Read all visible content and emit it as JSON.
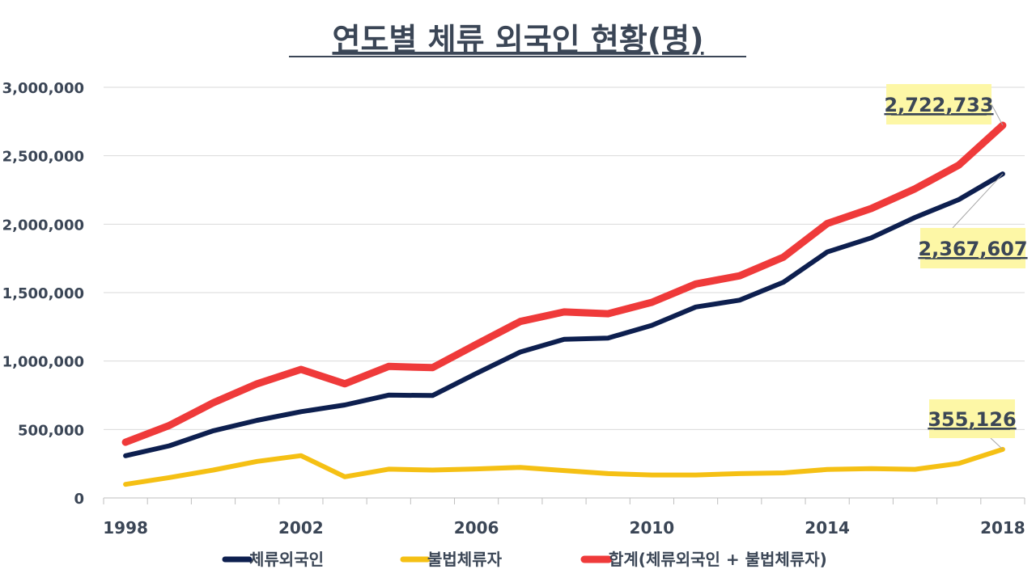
{
  "chart_data": {
    "type": "line",
    "title": "연도별 체류 외국인 현황(명)",
    "x": [
      1998,
      1999,
      2000,
      2001,
      2002,
      2003,
      2004,
      2005,
      2006,
      2007,
      2008,
      2009,
      2010,
      2011,
      2012,
      2013,
      2014,
      2015,
      2016,
      2017,
      2018
    ],
    "x_tick_labels": [
      "1998",
      "2002",
      "2006",
      "2010",
      "2014",
      "2018"
    ],
    "y_tick_labels": [
      "0",
      "500,000",
      "1,000,000",
      "1,500,000",
      "2,000,000",
      "2,500,000",
      "3,000,000"
    ],
    "ylim": [
      0,
      3000000
    ],
    "grid": true,
    "legend_position": "bottom",
    "series": [
      {
        "name": "체류외국인",
        "color": "#0d1f4f",
        "values": [
          308000,
          381000,
          491000,
          567000,
          630000,
          679000,
          751000,
          748000,
          910000,
          1066000,
          1159000,
          1168000,
          1261000,
          1395000,
          1445000,
          1576000,
          1797000,
          1900000,
          2049000,
          2180000,
          2367607
        ]
      },
      {
        "name": "불법체류자",
        "color": "#f5c014",
        "values": [
          99000,
          149000,
          204000,
          267000,
          309000,
          155000,
          210000,
          204000,
          212000,
          223000,
          200000,
          178000,
          168000,
          168000,
          178000,
          183000,
          208000,
          214000,
          209000,
          252000,
          355126
        ]
      },
      {
        "name": "합계(체류외국인 + 불법체류자)",
        "color": "#ef3a3a",
        "values": [
          407000,
          530000,
          695000,
          834000,
          939000,
          834000,
          961000,
          952000,
          1122000,
          1289000,
          1359000,
          1346000,
          1429000,
          1563000,
          1623000,
          1759000,
          2005000,
          2114000,
          2258000,
          2432000,
          2722733
        ]
      }
    ],
    "annotations": [
      {
        "series_index": 2,
        "point_index": 20,
        "text": "2,722,733"
      },
      {
        "series_index": 0,
        "point_index": 20,
        "text": "2,367,607"
      },
      {
        "series_index": 1,
        "point_index": 20,
        "text": "355,126"
      }
    ]
  }
}
